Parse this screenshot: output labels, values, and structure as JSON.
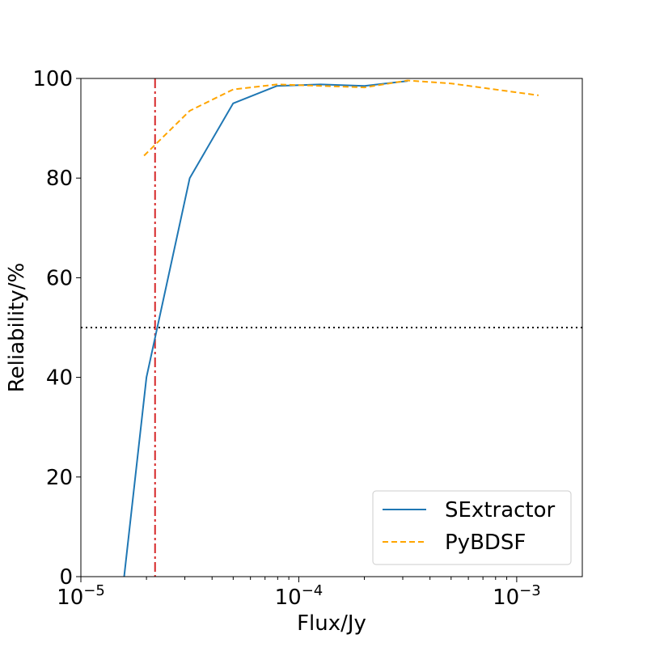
{
  "chart_data": {
    "type": "line",
    "title": "",
    "xlabel": "Flux/Jy",
    "ylabel": "Reliability/%",
    "xscale": "log",
    "xlim": [
      1e-05,
      0.002
    ],
    "ylim": [
      0,
      100
    ],
    "x_ticks": [
      {
        "value": 1e-05,
        "base": "10",
        "exp": "−5"
      },
      {
        "value": 0.0001,
        "base": "10",
        "exp": "−4"
      },
      {
        "value": 0.001,
        "base": "10",
        "exp": "−3"
      }
    ],
    "y_ticks": [
      0,
      20,
      40,
      60,
      80,
      100
    ],
    "series": [
      {
        "name": "SExtractor",
        "color": "#1f77b4",
        "style": "solid",
        "x": [
          1.58e-05,
          2e-05,
          3.16e-05,
          5e-05,
          7.94e-05,
          0.000126,
          0.0002,
          0.000316
        ],
        "y": [
          0,
          40,
          80,
          95,
          98.5,
          98.8,
          98.5,
          99.5
        ]
      },
      {
        "name": "PyBDSF",
        "color": "#ffa500",
        "style": "dashed",
        "x": [
          1.95e-05,
          3.16e-05,
          5e-05,
          7.94e-05,
          0.000126,
          0.0002,
          0.000316,
          0.0005,
          0.00126
        ],
        "y": [
          84.5,
          93.5,
          97.8,
          98.8,
          98.5,
          98.2,
          99.6,
          99,
          96.6
        ]
      }
    ],
    "reference_lines": [
      {
        "orientation": "horizontal",
        "value": 50,
        "color": "#000000",
        "style": "dotted"
      },
      {
        "orientation": "vertical",
        "value": 2.19e-05,
        "color": "#d62728",
        "style": "dashdot"
      }
    ],
    "legend_position": "lower-right",
    "grid": false
  }
}
